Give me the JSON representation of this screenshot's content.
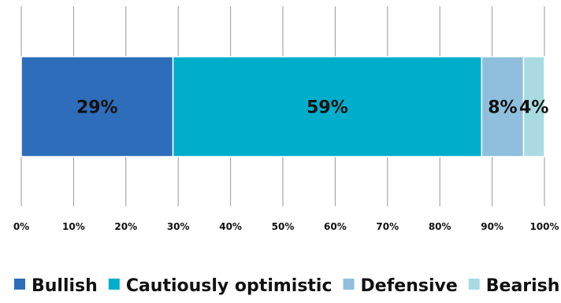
{
  "chart_data": {
    "type": "bar",
    "orientation": "horizontal-stacked",
    "title": "",
    "xlabel": "",
    "ylabel": "",
    "xlim": [
      0,
      100
    ],
    "x_ticks": [
      "0%",
      "10%",
      "20%",
      "30%",
      "40%",
      "50%",
      "60%",
      "70%",
      "80%",
      "90%",
      "100%"
    ],
    "grid": "vertical",
    "legend_position": "bottom",
    "series": [
      {
        "name": "Bullish",
        "values": [
          29
        ],
        "label": "29%",
        "color": "#2E6DB9"
      },
      {
        "name": "Cautiously optimistic",
        "values": [
          59
        ],
        "label": "59%",
        "color": "#00AECB"
      },
      {
        "name": "Defensive",
        "values": [
          8
        ],
        "label": "8%",
        "color": "#8FBFDD"
      },
      {
        "name": "Bearish",
        "values": [
          4
        ],
        "label": "4%",
        "color": "#A8DCE2"
      }
    ]
  }
}
